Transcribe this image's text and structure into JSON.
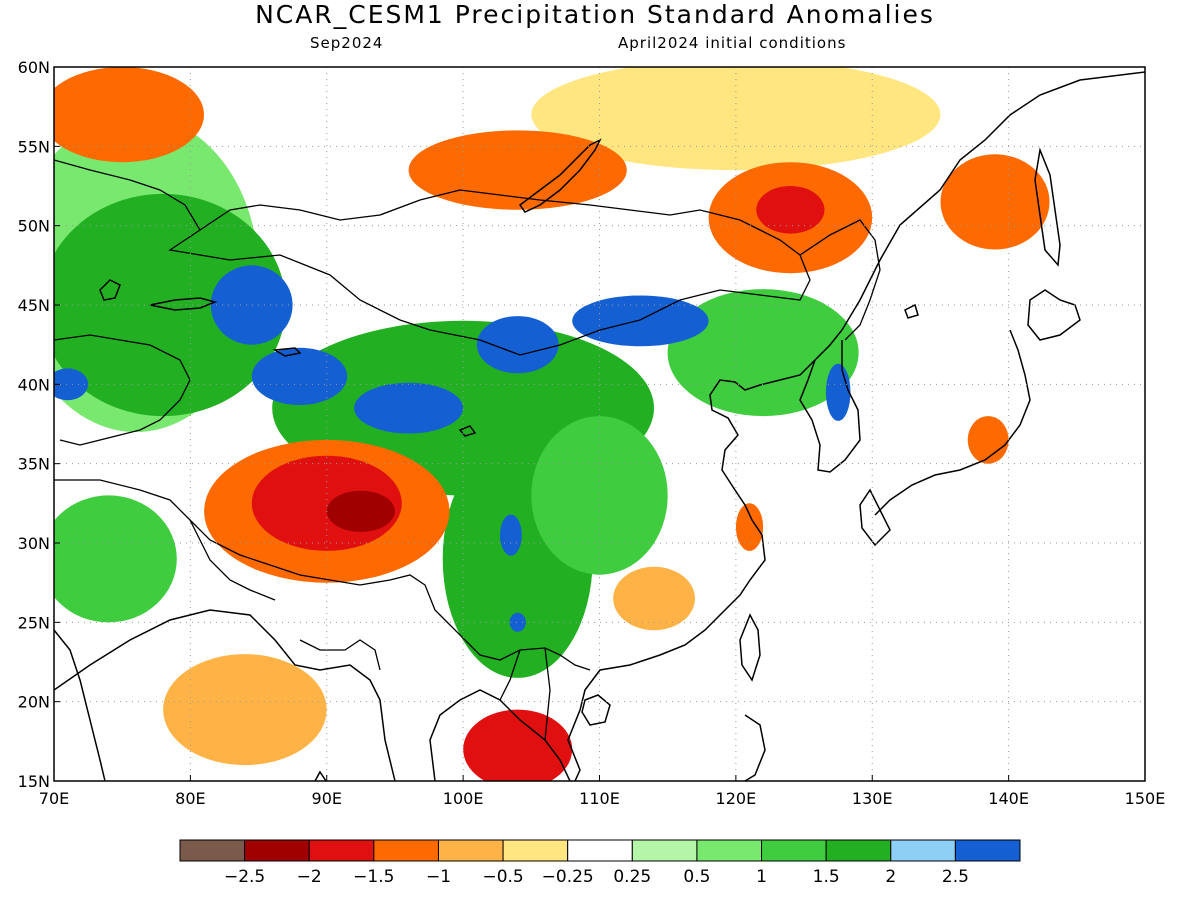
{
  "title": "NCAR_CESM1 Precipitation Standard Anomalies",
  "subtitle_left": "Sep2024",
  "subtitle_right": "April2024 initial conditions",
  "map": {
    "lon_range": [
      70,
      150
    ],
    "lat_range": [
      15,
      60
    ],
    "grid": "dotted",
    "lat_ticks": [
      {
        "value": 60,
        "label": "60N"
      },
      {
        "value": 55,
        "label": "55N"
      },
      {
        "value": 50,
        "label": "50N"
      },
      {
        "value": 45,
        "label": "45N"
      },
      {
        "value": 40,
        "label": "40N"
      },
      {
        "value": 35,
        "label": "35N"
      },
      {
        "value": 30,
        "label": "30N"
      },
      {
        "value": 25,
        "label": "25N"
      },
      {
        "value": 20,
        "label": "20N"
      },
      {
        "value": 15,
        "label": "15N"
      }
    ],
    "lon_ticks": [
      {
        "value": 70,
        "label": "70E"
      },
      {
        "value": 80,
        "label": "80E"
      },
      {
        "value": 90,
        "label": "90E"
      },
      {
        "value": 100,
        "label": "100E"
      },
      {
        "value": 110,
        "label": "110E"
      },
      {
        "value": 120,
        "label": "120E"
      },
      {
        "value": 130,
        "label": "130E"
      },
      {
        "value": 140,
        "label": "140E"
      },
      {
        "value": 150,
        "label": "150E"
      }
    ],
    "anomaly_regions": [
      {
        "lon": 88,
        "lat": 40.5,
        "rx": 3.5,
        "ry": 1.8,
        "level": 2.6
      },
      {
        "lon": 96,
        "lat": 38.5,
        "rx": 4.0,
        "ry": 1.6,
        "level": 2.6
      },
      {
        "lon": 104,
        "lat": 42.5,
        "rx": 3.0,
        "ry": 1.8,
        "level": 2.6
      },
      {
        "lon": 113,
        "lat": 44.0,
        "rx": 5.0,
        "ry": 1.6,
        "level": 2.6
      },
      {
        "lon": 84.5,
        "lat": 45.0,
        "rx": 3.0,
        "ry": 2.5,
        "level": 2.6
      },
      {
        "lon": 127.5,
        "lat": 39.5,
        "rx": 0.9,
        "ry": 1.8,
        "level": 2.6
      },
      {
        "lon": 103.5,
        "lat": 30.5,
        "rx": 0.8,
        "ry": 1.3,
        "level": 2.6
      },
      {
        "lon": 104,
        "lat": 25.0,
        "rx": 0.6,
        "ry": 0.6,
        "level": 2.6
      },
      {
        "lon": 71,
        "lat": 40.0,
        "rx": 1.5,
        "ry": 1.0,
        "level": 2.6
      },
      {
        "lon": 100,
        "lat": 38.5,
        "rx": 14,
        "ry": 5.5,
        "level": 1.8
      },
      {
        "lon": 104,
        "lat": 29.0,
        "rx": 5.5,
        "ry": 7.5,
        "level": 1.8
      },
      {
        "lon": 78,
        "lat": 45.0,
        "rx": 9,
        "ry": 7,
        "level": 1.6
      },
      {
        "lon": 122,
        "lat": 42.0,
        "rx": 7,
        "ry": 4,
        "level": 1.3
      },
      {
        "lon": 74,
        "lat": 29.0,
        "rx": 5,
        "ry": 4,
        "level": 1.2
      },
      {
        "lon": 110,
        "lat": 33.0,
        "rx": 5,
        "ry": 5,
        "level": 1.0
      },
      {
        "lon": 76,
        "lat": 47.0,
        "rx": 9,
        "ry": 10,
        "level": 0.6
      },
      {
        "lon": 92.5,
        "lat": 32.0,
        "rx": 2.5,
        "ry": 1.3,
        "level": -2.2
      },
      {
        "lon": 90,
        "lat": 32.5,
        "rx": 5.5,
        "ry": 3.0,
        "level": -1.7
      },
      {
        "lon": 90,
        "lat": 32.0,
        "rx": 9,
        "ry": 4.5,
        "level": -1.1
      },
      {
        "lon": 124,
        "lat": 51.0,
        "rx": 2.5,
        "ry": 1.5,
        "level": -1.7
      },
      {
        "lon": 124,
        "lat": 50.5,
        "rx": 6,
        "ry": 3.5,
        "level": -1.1
      },
      {
        "lon": 104,
        "lat": 17.0,
        "rx": 4,
        "ry": 2.5,
        "level": -1.7
      },
      {
        "lon": 75,
        "lat": 57.0,
        "rx": 6,
        "ry": 3,
        "level": -1.2
      },
      {
        "lon": 104,
        "lat": 53.5,
        "rx": 8,
        "ry": 2.5,
        "level": -1.1
      },
      {
        "lon": 139,
        "lat": 51.5,
        "rx": 4,
        "ry": 3,
        "level": -1.1
      },
      {
        "lon": 138.5,
        "lat": 36.5,
        "rx": 1.5,
        "ry": 1.5,
        "level": -1.4
      },
      {
        "lon": 121,
        "lat": 31.0,
        "rx": 1.0,
        "ry": 1.5,
        "level": -1.1
      },
      {
        "lon": 84,
        "lat": 19.5,
        "rx": 6,
        "ry": 3.5,
        "level": -0.8
      },
      {
        "lon": 114,
        "lat": 26.5,
        "rx": 3,
        "ry": 2,
        "level": -0.8
      },
      {
        "lon": 120,
        "lat": 57.0,
        "rx": 15,
        "ry": 3.5,
        "level": -0.5
      }
    ]
  },
  "colorbar": {
    "colors": [
      "#7a5a4a",
      "#a00000",
      "#e01010",
      "#ff6a00",
      "#ffb347",
      "#ffe680",
      "#ffffff",
      "#b5f5a8",
      "#78e86e",
      "#3fcc3f",
      "#22b022",
      "#8ecff5",
      "#1460d2"
    ],
    "labels": [
      "−2.5",
      "−2",
      "−1.5",
      "−1",
      "−0.5",
      "−0.25",
      "0.25",
      "0.5",
      "1",
      "1.5",
      "2",
      "2.5"
    ]
  }
}
